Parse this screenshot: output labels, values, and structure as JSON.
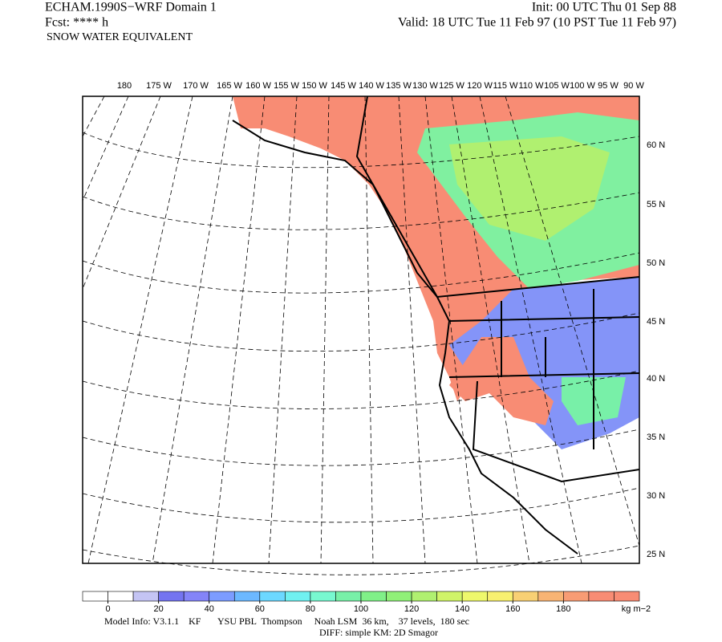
{
  "header": {
    "left": [
      "ECHAM.1990S−WRF Domain 1",
      "Fcst: **** h",
      "SNOW WATER EQUIVALENT"
    ],
    "right": [
      "Init: 00 UTC Thu 01 Sep 88",
      "Valid: 18 UTC Tue 11 Feb 97 (10 PST Tue 11 Feb 97)"
    ]
  },
  "map": {
    "lon_labels": [
      "180",
      "175 W",
      "170 W",
      "165 W",
      "160 W",
      "155 W",
      "150 W",
      "145 W",
      "140 W",
      "135 W",
      "130 W",
      "125 W",
      "120 W",
      "115 W",
      "110 W",
      "105 W",
      "100 W",
      "95 W",
      "90 W"
    ],
    "lat_labels": [
      "60 N",
      "55 N",
      "50 N",
      "45 N",
      "40 N",
      "35 N",
      "30 N",
      "25 N"
    ]
  },
  "colorbar": {
    "colors": [
      "#ffffff",
      "#ffffff",
      "#c4c4f4",
      "#7474f0",
      "#8484f8",
      "#7c9cff",
      "#6cb8ff",
      "#6cd8ff",
      "#70f0f0",
      "#78f8d0",
      "#78f0a8",
      "#80f088",
      "#90f078",
      "#b0f070",
      "#d0f468",
      "#eef86c",
      "#f8f070",
      "#f8d074",
      "#f8b474",
      "#f89c74",
      "#f88c74",
      "#f88c74"
    ],
    "ticks": [
      0,
      20,
      40,
      60,
      80,
      100,
      120,
      140,
      160,
      180
    ],
    "unit": "kg m−2"
  },
  "footer": [
    "Model Info: V3.1.1    KF       YSU PBL  Thompson     Noah LSM  36 km,    37 levels,  180 sec",
    "DIFF: simple KM: 2D Smagor"
  ]
}
